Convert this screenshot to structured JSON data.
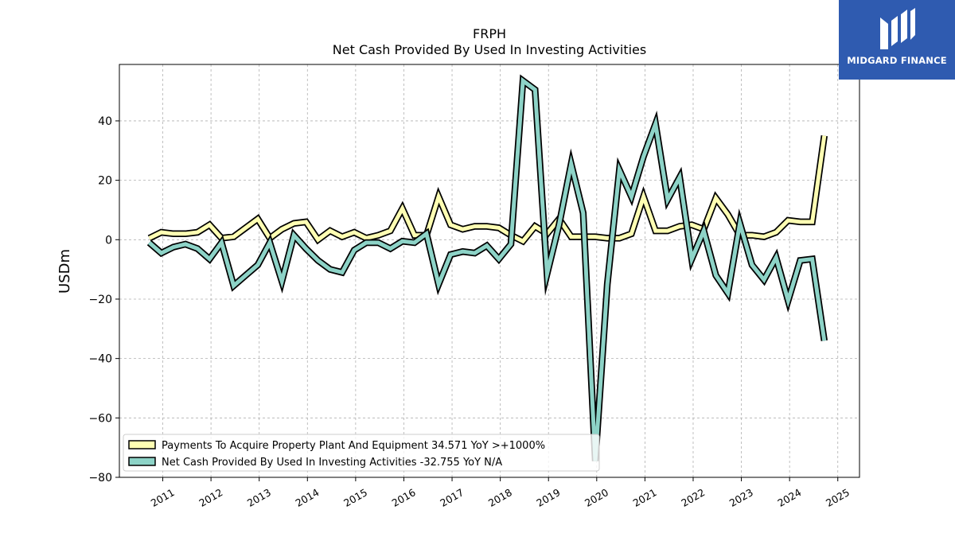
{
  "chart_data": {
    "type": "line",
    "title": "FRPH",
    "subtitle": "Net Cash Provided By Used In Investing Activities",
    "ylabel": "USDm",
    "xlabel": "",
    "ylim": [
      -80,
      59
    ],
    "xlim": [
      2010.1,
      2025.45
    ],
    "yticks": [
      -80,
      -60,
      -40,
      -20,
      0,
      20,
      40
    ],
    "yticklabels": [
      "−80",
      "−60",
      "−40",
      "−20",
      "0",
      "20",
      "40"
    ],
    "xticks": [
      2011,
      2012,
      2013,
      2014,
      2015,
      2016,
      2017,
      2018,
      2019,
      2020,
      2021,
      2022,
      2023,
      2024,
      2025
    ],
    "xticklabels": [
      "2011",
      "2012",
      "2013",
      "2014",
      "2015",
      "2016",
      "2017",
      "2018",
      "2019",
      "2020",
      "2021",
      "2022",
      "2023",
      "2024",
      "2025"
    ],
    "grid": true,
    "legend_position": "lower-left",
    "x": [
      2010.72,
      2010.97,
      2011.22,
      2011.47,
      2011.72,
      2011.97,
      2012.22,
      2012.47,
      2012.72,
      2012.97,
      2013.22,
      2013.47,
      2013.72,
      2013.97,
      2014.22,
      2014.47,
      2014.72,
      2014.97,
      2015.22,
      2015.47,
      2015.72,
      2015.97,
      2016.22,
      2016.47,
      2016.72,
      2016.97,
      2017.22,
      2017.47,
      2017.72,
      2017.97,
      2018.22,
      2018.47,
      2018.72,
      2018.97,
      2019.22,
      2019.47,
      2019.72,
      2019.97,
      2020.22,
      2020.47,
      2020.72,
      2020.97,
      2021.22,
      2021.47,
      2021.72,
      2021.97,
      2022.22,
      2022.47,
      2022.72,
      2022.97,
      2023.22,
      2023.47,
      2023.72,
      2023.97,
      2024.22,
      2024.47,
      2024.72,
      2024.97
    ],
    "series": [
      {
        "name": "Payments To Acquire Property Plant And Equipment  34.571 YoY >+1000%",
        "color": "#ffffb3",
        "values": [
          0.5,
          2.5,
          2.0,
          2.0,
          2.5,
          5.0,
          0.5,
          1.0,
          4.0,
          7.0,
          0.5,
          3.5,
          5.5,
          6.0,
          0.0,
          3.0,
          1.0,
          2.5,
          0.5,
          1.5,
          3.0,
          10.5,
          1.5,
          1.5,
          14.5,
          5.0,
          3.5,
          4.5,
          4.5,
          4.0,
          1.5,
          -0.5,
          4.5,
          2.0,
          7.0,
          1.0,
          1.0,
          1.0,
          0.5,
          0.5,
          2.0,
          14.5,
          3.0,
          3.0,
          4.5,
          5.0,
          3.5,
          14.0,
          8.5,
          1.5,
          1.5,
          1.0,
          2.5,
          6.5,
          6.0,
          6.0,
          35.0,
          null
        ]
      },
      {
        "name": "Net Cash Provided By Used In Investing Activities  -32.755 YoY N/A",
        "color": "#8dd3c7",
        "values": [
          -1.0,
          -4.5,
          -2.5,
          -1.5,
          -3.0,
          -6.5,
          -1.0,
          -15.5,
          -12.0,
          -8.5,
          -1.0,
          -14.0,
          1.5,
          -3.0,
          -7.0,
          -10.0,
          -11.0,
          -3.5,
          -1.0,
          -1.0,
          -3.0,
          -0.5,
          -1.0,
          2.0,
          -15.0,
          -5.0,
          -4.0,
          -4.5,
          -2.0,
          -6.5,
          -1.5,
          53.5,
          50.5,
          -11.5,
          5.0,
          25.5,
          9.0,
          -74.5,
          -15.0,
          23.5,
          14.5,
          28.0,
          39.0,
          13.5,
          21.0,
          -6.5,
          3.0,
          -12.0,
          -18.0,
          5.5,
          -8.5,
          -13.5,
          -6.0,
          -20.5,
          -7.0,
          -6.5,
          -34.0,
          null
        ]
      }
    ]
  },
  "logo": {
    "text": "MIDGARD FINANCE"
  }
}
